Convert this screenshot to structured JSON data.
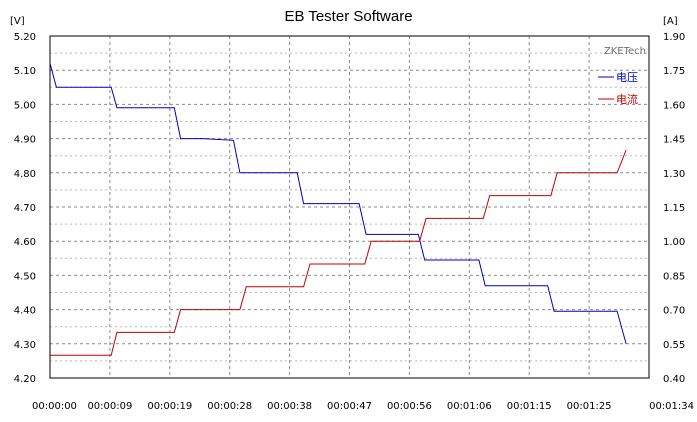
{
  "chart_data": {
    "type": "line",
    "title": "EB Tester Software",
    "watermark": "ZKETech",
    "y_left_unit": "[V]",
    "y_right_unit": "[A]",
    "y_left_ticks": [
      "5.20",
      "5.10",
      "5.00",
      "4.90",
      "4.80",
      "4.70",
      "4.60",
      "4.50",
      "4.40",
      "4.30",
      "4.20"
    ],
    "y_right_ticks": [
      "1.90",
      "1.75",
      "1.60",
      "1.45",
      "1.30",
      "1.15",
      "1.00",
      "0.85",
      "0.70",
      "0.55",
      "0.40"
    ],
    "x_ticks": [
      "00:00:00",
      "00:00:09",
      "00:00:19",
      "00:00:28",
      "00:00:38",
      "00:00:47",
      "00:00:56",
      "00:01:06",
      "00:01:15",
      "00:01:25",
      "00:01:34"
    ],
    "ylim_left": [
      4.2,
      5.2
    ],
    "ylim_right": [
      0.4,
      1.9
    ],
    "xlim_seconds": [
      0,
      94
    ],
    "grid": true,
    "legend_position": "top-right",
    "series": [
      {
        "name": "电压",
        "color": "#0000c0",
        "axis": "left",
        "x": [
          0,
          1,
          9.6,
          10.5,
          19.5,
          20.5,
          24,
          28.8,
          29.8,
          38.8,
          39.8,
          48.5,
          49.6,
          55.6,
          57.8,
          58.8,
          67.3,
          68.3,
          78.1,
          79.1,
          89,
          90.4
        ],
        "y": [
          5.12,
          5.05,
          5.05,
          4.99,
          4.99,
          4.9,
          4.9,
          4.895,
          4.8,
          4.8,
          4.71,
          4.71,
          4.62,
          4.62,
          4.62,
          4.545,
          4.545,
          4.47,
          4.47,
          4.395,
          4.395,
          4.3
        ]
      },
      {
        "name": "电流",
        "color": "#c00000",
        "axis": "right",
        "x": [
          0,
          9.6,
          10.5,
          19.5,
          20.5,
          29.8,
          30.8,
          39.8,
          40.8,
          49.4,
          50.4,
          58,
          59,
          68,
          69,
          78.6,
          79.6,
          89,
          90.4
        ],
        "y": [
          0.5,
          0.5,
          0.6,
          0.6,
          0.7,
          0.7,
          0.8,
          0.8,
          0.9,
          0.9,
          1.0,
          1.0,
          1.1,
          1.1,
          1.2,
          1.2,
          1.3,
          1.3,
          1.4
        ]
      }
    ]
  }
}
